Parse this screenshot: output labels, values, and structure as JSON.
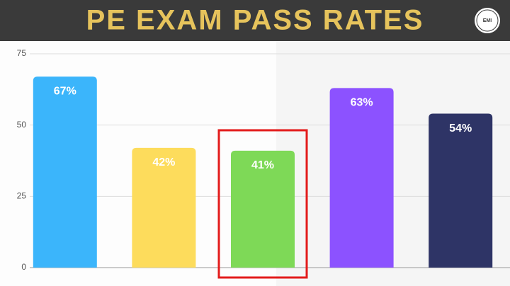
{
  "logo": "EMI",
  "chart_data": {
    "type": "bar",
    "title": "PE EXAM PASS RATES",
    "categories": [
      null,
      null,
      null,
      null,
      null
    ],
    "values": [
      67,
      42,
      41,
      63,
      54
    ],
    "value_labels": [
      "67%",
      "42%",
      "41%",
      "63%",
      "54%"
    ],
    "colors": [
      "#3bb5fb",
      "#fddc5c",
      "#7ed957",
      "#8c52ff",
      "#2e3466"
    ],
    "ylim": [
      0,
      75
    ],
    "yticks": [
      0,
      25,
      50,
      75
    ],
    "grid": true
  }
}
